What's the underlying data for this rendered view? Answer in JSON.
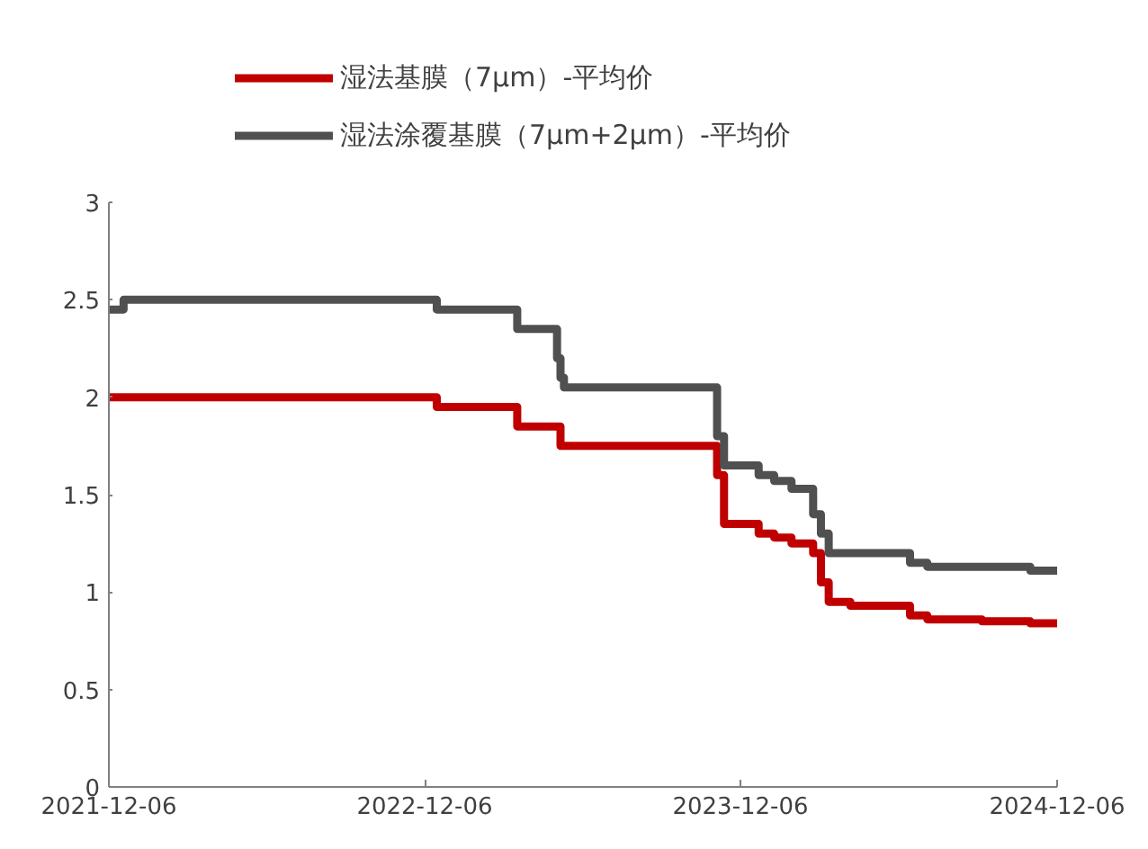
{
  "chart_data": {
    "type": "step",
    "x": [
      "2021-12-06",
      "2021-12-23",
      "2022-12-20",
      "2023-03-23",
      "2023-05-08",
      "2023-05-12",
      "2023-05-16",
      "2023-11-09",
      "2023-11-17",
      "2023-12-27",
      "2024-01-14",
      "2024-02-03",
      "2024-02-28",
      "2024-03-08",
      "2024-03-17",
      "2024-04-11",
      "2024-06-19",
      "2024-07-09",
      "2024-09-10",
      "2024-11-05",
      "2024-12-06"
    ],
    "series": [
      {
        "name": "湿法基膜（7μm）-平均价",
        "color": "#c00000",
        "values": [
          2.0,
          2.0,
          1.95,
          1.85,
          1.85,
          1.75,
          1.75,
          1.6,
          1.35,
          1.3,
          1.28,
          1.25,
          1.2,
          1.05,
          0.95,
          0.93,
          0.88,
          0.86,
          0.85,
          0.84,
          0.83
        ]
      },
      {
        "name": "湿法涂覆基膜（7μm+2μm）-平均价",
        "color": "#505050",
        "values": [
          2.45,
          2.5,
          2.45,
          2.35,
          2.2,
          2.1,
          2.05,
          1.8,
          1.65,
          1.6,
          1.57,
          1.53,
          1.4,
          1.3,
          1.2,
          1.2,
          1.15,
          1.13,
          1.13,
          1.11,
          1.11
        ]
      }
    ],
    "xlim": [
      "2021-12-06",
      "2024-12-06"
    ],
    "xticks": [
      "2021-12-06",
      "2022-12-06",
      "2023-12-06",
      "2024-12-06"
    ],
    "ylim": [
      0,
      3
    ],
    "yticks": [
      0,
      0.5,
      1,
      1.5,
      2,
      2.5,
      3
    ],
    "grid": false,
    "legend": "top",
    "line_style": "solid",
    "marker": "none"
  }
}
